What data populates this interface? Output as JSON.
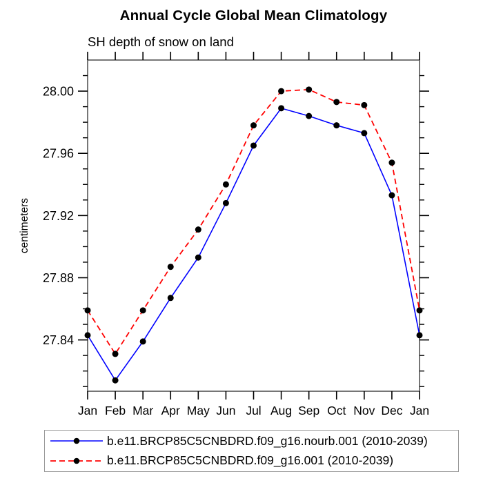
{
  "title": "Annual Cycle Global Mean Climatology",
  "subtitle": "SH depth of snow on land",
  "y_axis_title": "centimeters",
  "colors": {
    "series1": "#0000ff",
    "series2": "#ff0000",
    "marker": "#000000",
    "frame": "#3c3c3c",
    "tick": "#000000",
    "legend_border": "#9a9a9a"
  },
  "chart_data": {
    "type": "line",
    "title": "Annual Cycle Global Mean Climatology",
    "subtitle": "SH depth of snow on land",
    "ylabel": "centimeters",
    "xlabel": "",
    "grid": false,
    "legend_position": "bottom-left-box",
    "x_tick_labels": [
      "Jan",
      "Feb",
      "Mar",
      "Apr",
      "May",
      "Jun",
      "Jul",
      "Aug",
      "Sep",
      "Oct",
      "Nov",
      "Dec",
      "Jan"
    ],
    "y_major_ticks": [
      27.84,
      27.88,
      27.92,
      27.96,
      28.0
    ],
    "y_minor_tick_step": 0.01,
    "y_minor_tick_range": [
      27.81,
      28.01
    ],
    "ylim": [
      27.807,
      28.02
    ],
    "series": [
      {
        "name": "b.e11.BRCP85C5CNBDRD.f09_g16.nourb.001 (2010-2039)",
        "color": "#0000ff",
        "line_style": "solid",
        "marker": "filled-circle",
        "marker_color": "#000000",
        "values": [
          27.843,
          27.814,
          27.839,
          27.867,
          27.893,
          27.928,
          27.965,
          27.989,
          27.984,
          27.978,
          27.973,
          27.933,
          27.843
        ]
      },
      {
        "name": "b.e11.BRCP85C5CNBDRD.f09_g16.001 (2010-2039)",
        "color": "#ff0000",
        "line_style": "dashed",
        "marker": "filled-circle",
        "marker_color": "#000000",
        "values": [
          27.859,
          27.831,
          27.859,
          27.887,
          27.911,
          27.94,
          27.978,
          28.0,
          28.001,
          27.993,
          27.991,
          27.954,
          27.859
        ]
      }
    ]
  }
}
